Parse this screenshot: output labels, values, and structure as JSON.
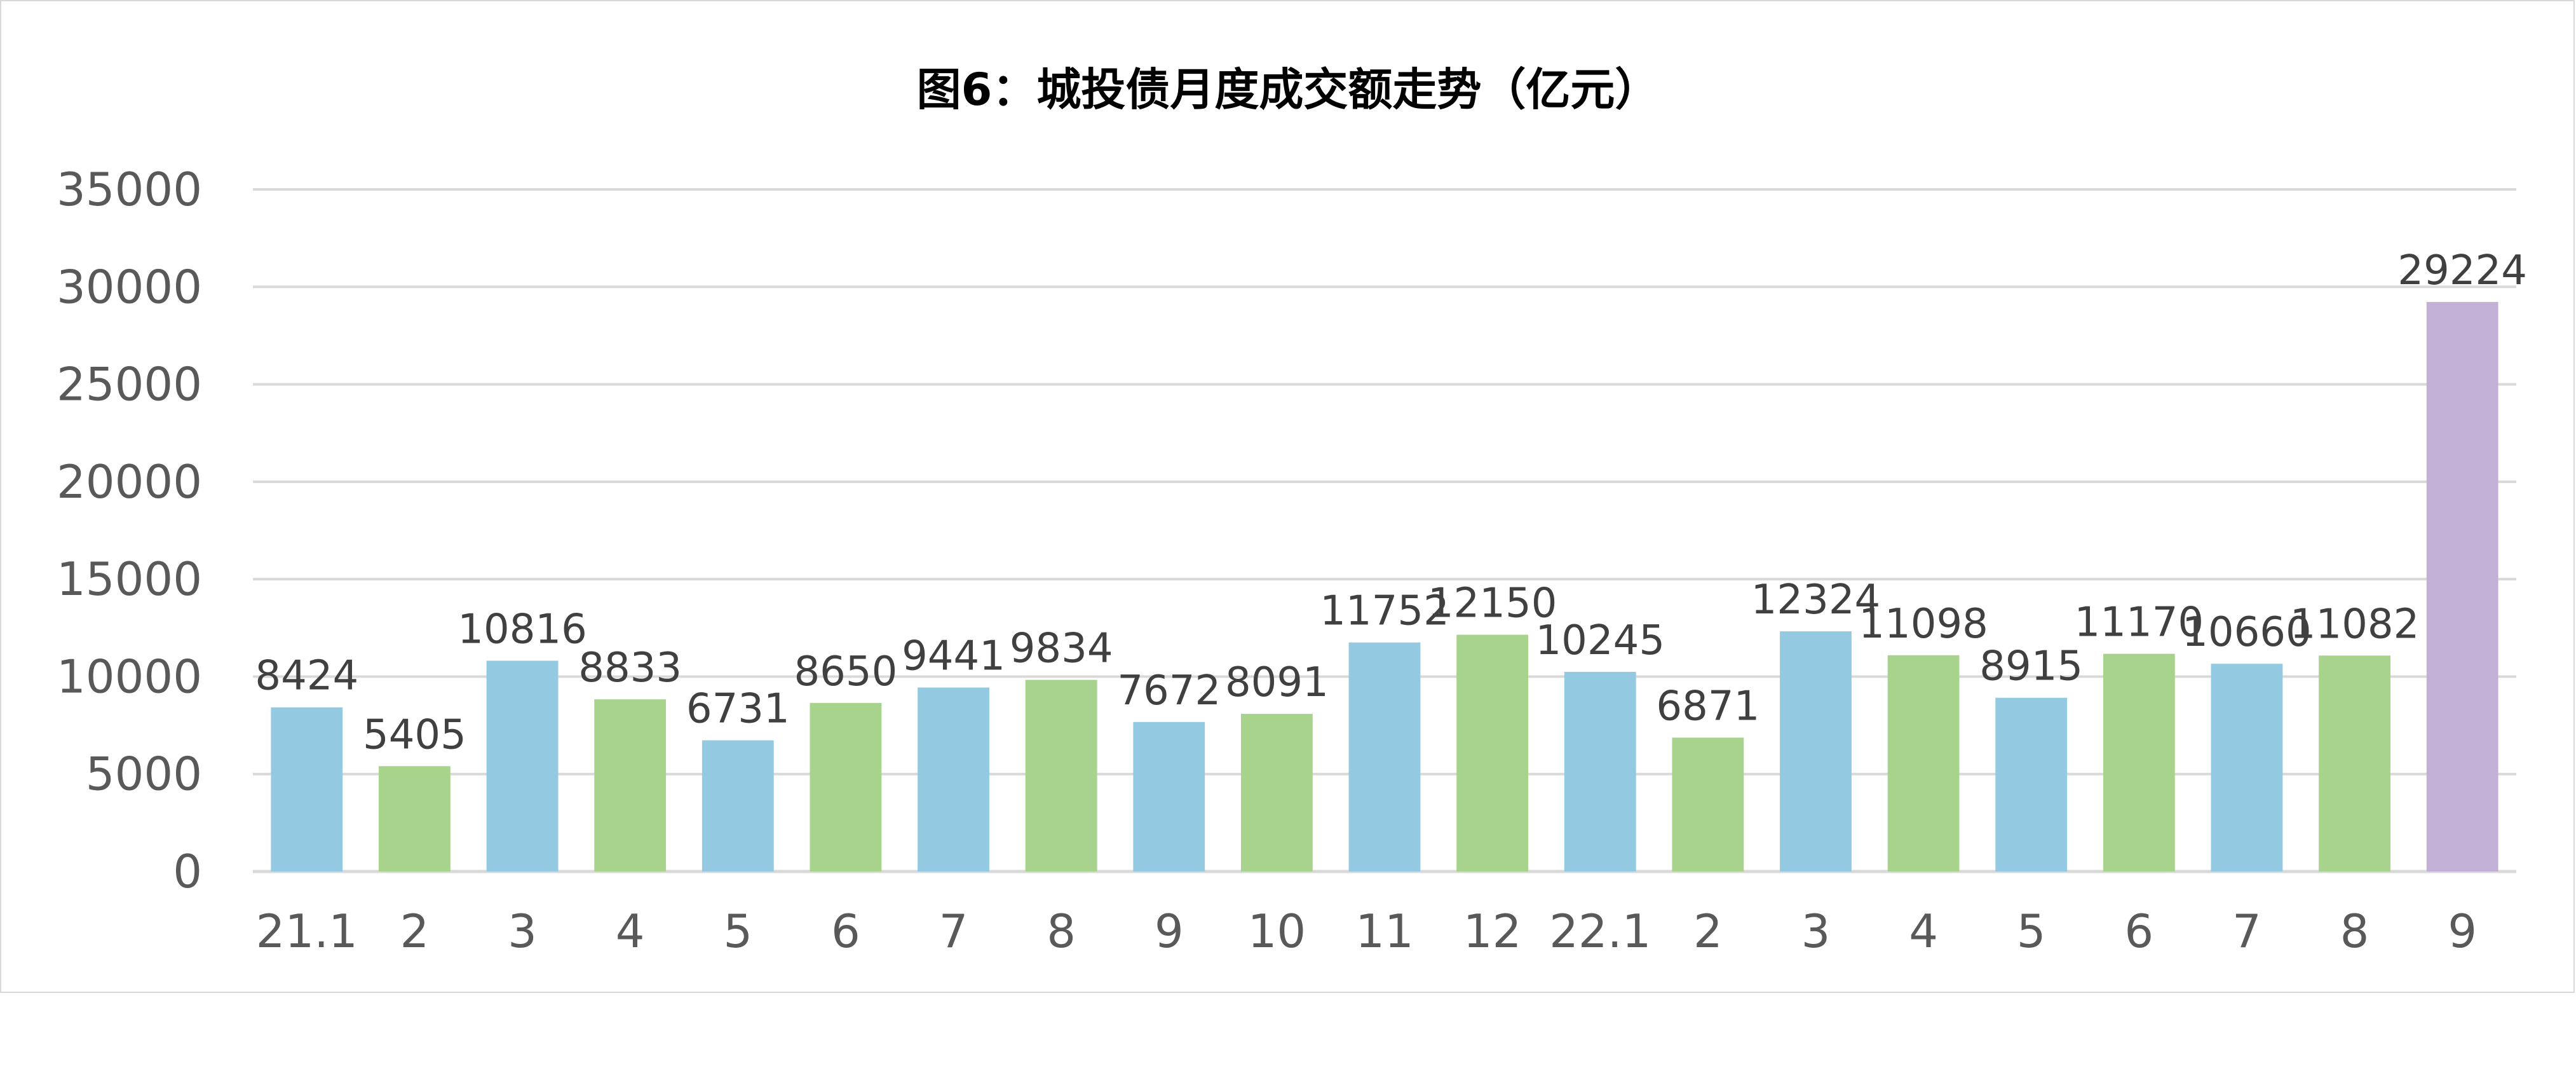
{
  "chart_data": {
    "type": "bar",
    "title": "图6：城投债月度成交额走势（亿元）",
    "xlabel": "",
    "ylabel": "",
    "ylim": [
      0,
      35000
    ],
    "yticks": [
      0,
      5000,
      10000,
      15000,
      20000,
      25000,
      30000,
      35000
    ],
    "grid": true,
    "legend": "none",
    "categories": [
      "21.1",
      "2",
      "3",
      "4",
      "5",
      "6",
      "7",
      "8",
      "9",
      "10",
      "11",
      "12",
      "22.1",
      "2",
      "3",
      "4",
      "5",
      "6",
      "7",
      "8",
      "9"
    ],
    "values": [
      8424,
      5405,
      10816,
      8833,
      6731,
      8650,
      9441,
      9834,
      7672,
      8091,
      11752,
      12150,
      10245,
      6871,
      12324,
      11098,
      8915,
      11170,
      10660,
      11082,
      29224
    ],
    "colors": {
      "blue": "#93c9e1",
      "green": "#a8d38d",
      "purple": "#c3b0d7",
      "grid": "#d9d9d9",
      "tick_text": "#595959",
      "label_text": "#404040"
    },
    "bar_colors": [
      "blue",
      "green",
      "blue",
      "green",
      "blue",
      "green",
      "blue",
      "green",
      "blue",
      "green",
      "blue",
      "green",
      "blue",
      "green",
      "blue",
      "green",
      "blue",
      "green",
      "blue",
      "green",
      "purple"
    ]
  }
}
